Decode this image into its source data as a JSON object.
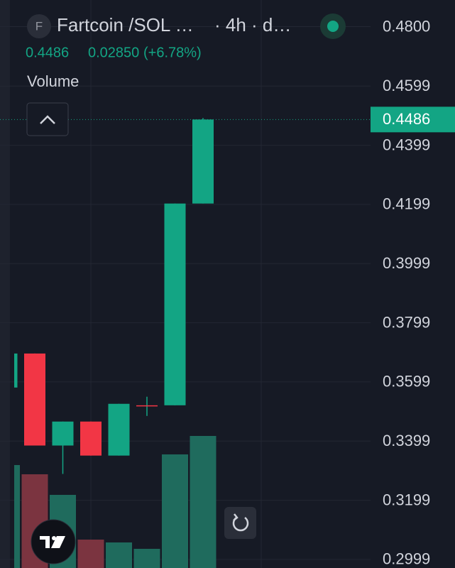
{
  "chart_data": {
    "type": "candlestick",
    "title": "Fartcoin /SOL …",
    "subtitle": "· 4h · d…",
    "symbol_icon": "F",
    "legend_values": [
      "0.4486",
      "0.02850",
      "(+6.78%)"
    ],
    "volume_label": "Volume",
    "categories": [
      null,
      null,
      null,
      null,
      null,
      null,
      null,
      null
    ],
    "open": [
      0.358,
      0.3695,
      0.3384,
      0.3465,
      0.335,
      0.3518,
      0.352,
      0.4202
    ],
    "high": [
      0.3695,
      0.3695,
      0.3465,
      0.3465,
      0.3525,
      0.3549,
      0.4202,
      0.4491
    ],
    "low": [
      0.358,
      0.3384,
      0.3288,
      0.335,
      0.335,
      0.3484,
      0.352,
      0.4202
    ],
    "close": [
      0.3695,
      0.3384,
      0.3465,
      0.335,
      0.3525,
      0.3518,
      0.4202,
      0.4486
    ],
    "volume": [
      145,
      132,
      103,
      40,
      36,
      27,
      160,
      186
    ],
    "up_color": "#13a584",
    "down_color": "#f23645",
    "up_volume_color": "#1f6b5d",
    "down_volume_color": "#7b3440",
    "ylim": [
      0.297,
      0.489
    ],
    "yticks": [
      {
        "value": 0.48,
        "label": "0.4800"
      },
      {
        "value": 0.4599,
        "label": "0.4599"
      },
      {
        "value": 0.4399,
        "label": "0.4399"
      },
      {
        "value": 0.4199,
        "label": "0.4199"
      },
      {
        "value": 0.3999,
        "label": "0.3999"
      },
      {
        "value": 0.3799,
        "label": "0.3799"
      },
      {
        "value": 0.3599,
        "label": "0.3599"
      },
      {
        "value": 0.3399,
        "label": "0.3399"
      },
      {
        "value": 0.3199,
        "label": "0.3199"
      },
      {
        "value": 0.2999,
        "label": "0.2999"
      }
    ],
    "last_price": {
      "value": 0.4486,
      "label": "0.4486"
    },
    "grid": true
  }
}
